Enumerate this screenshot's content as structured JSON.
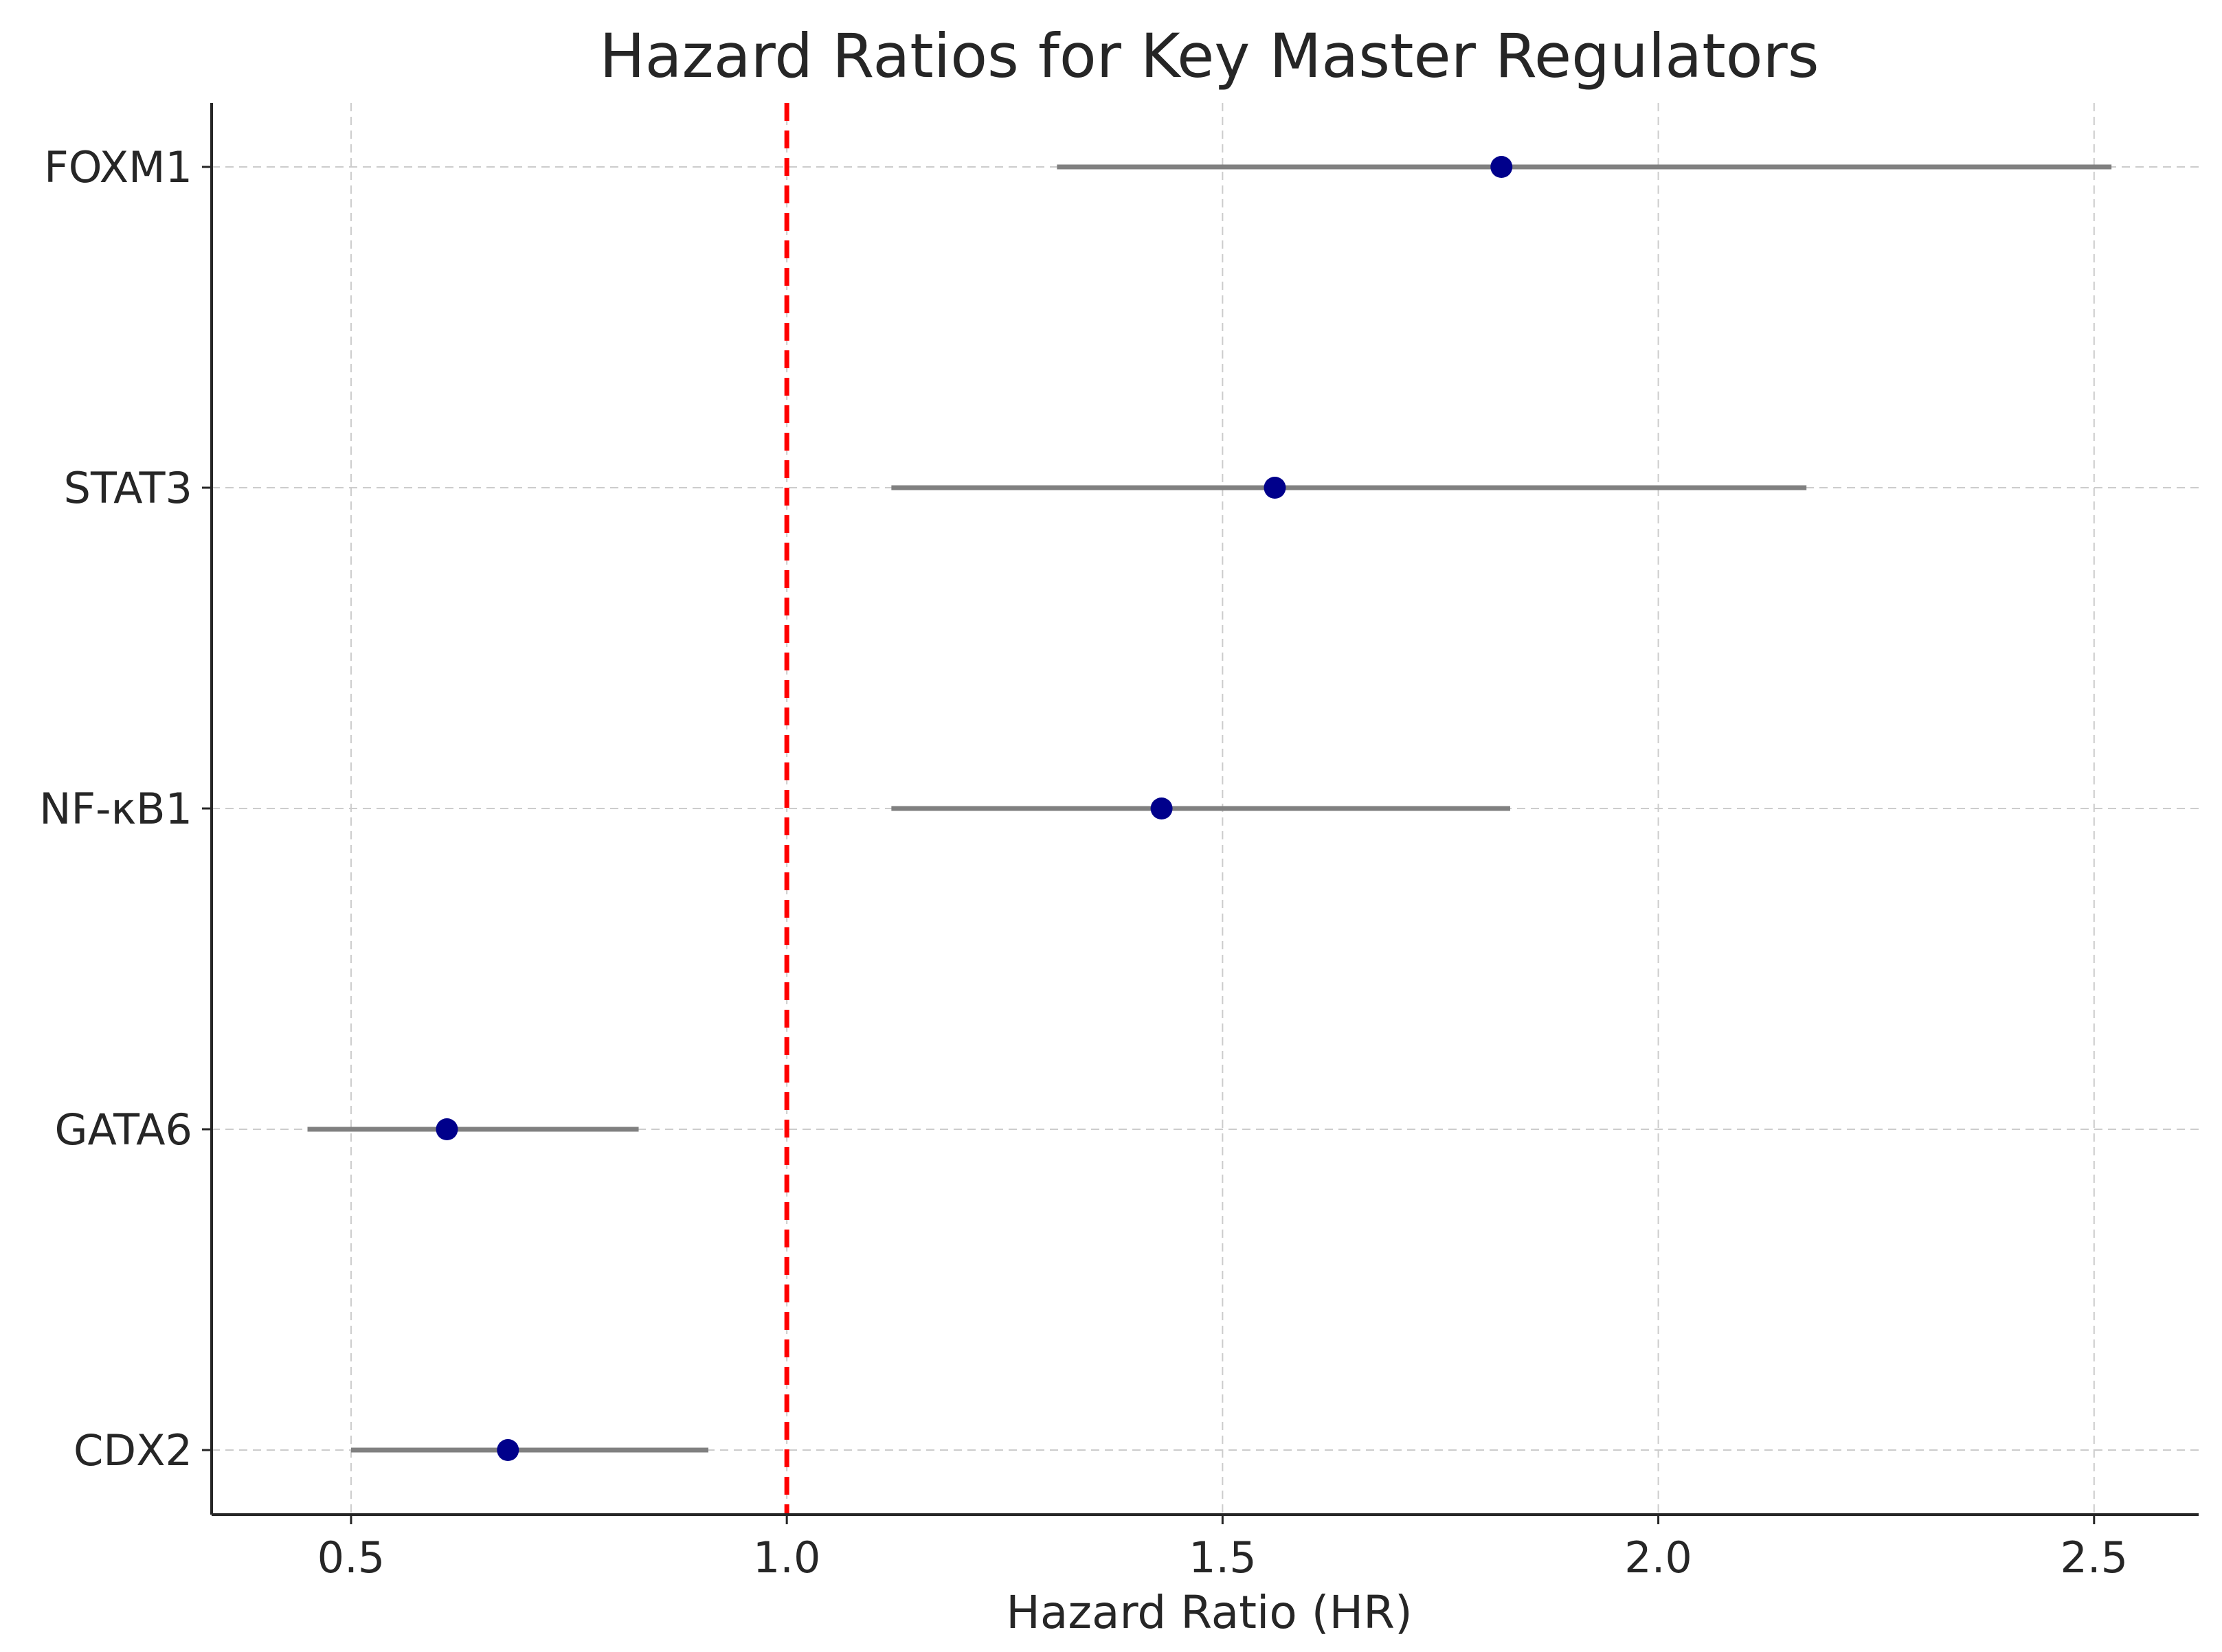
{
  "chart_data": {
    "type": "forest",
    "title": "Hazard Ratios for Key Master Regulators",
    "xlabel": "Hazard Ratio (HR)",
    "ylabel": "",
    "xlim": [
      0.34,
      2.62
    ],
    "xticks": [
      0.5,
      1.0,
      1.5,
      2.0,
      2.5
    ],
    "xtick_labels": [
      "0.5",
      "1.0",
      "1.5",
      "2.0",
      "2.5"
    ],
    "grid": true,
    "reference_line": {
      "x": 1.0,
      "style": "dashed",
      "color": "#ff0000"
    },
    "point_color": "#00008b",
    "ci_color": "#808080",
    "categories": [
      "FOXM1",
      "STAT3",
      "NF-κB1",
      "GATA6",
      "CDX2"
    ],
    "hr": [
      1.82,
      1.56,
      1.43,
      0.61,
      0.68
    ],
    "ci_lower": [
      1.31,
      1.12,
      1.12,
      0.45,
      0.5
    ],
    "ci_upper": [
      2.52,
      2.17,
      1.83,
      0.83,
      0.91
    ]
  }
}
